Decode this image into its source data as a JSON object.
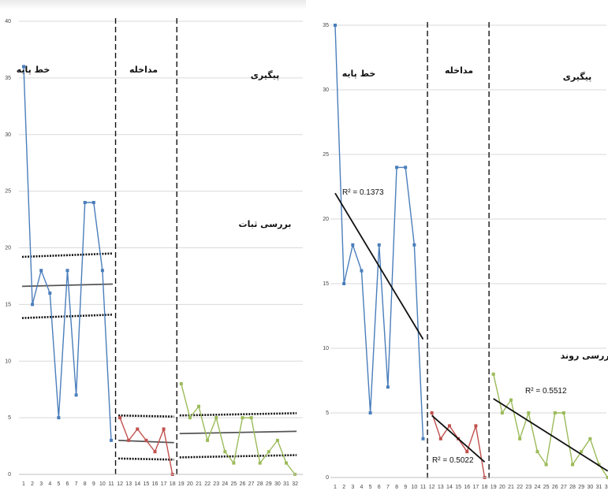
{
  "chart_data": [
    {
      "type": "line",
      "title": "",
      "xlabel": "",
      "ylabel": "",
      "x": [
        1,
        2,
        3,
        4,
        5,
        6,
        7,
        8,
        9,
        10,
        11,
        12,
        13,
        14,
        15,
        16,
        17,
        18,
        19,
        20,
        21,
        22,
        23,
        24,
        25,
        26,
        27,
        28,
        29,
        30,
        31,
        32
      ],
      "ylim": [
        0,
        40
      ],
      "yticks": [
        0,
        5,
        10,
        15,
        20,
        25,
        30,
        35,
        40
      ],
      "grid": "horizontal",
      "series": [
        {
          "segment": "baseline",
          "x": [
            1,
            2,
            3,
            4,
            5,
            6,
            7,
            8,
            9,
            10,
            11
          ],
          "values": [
            36,
            15,
            18,
            16,
            5,
            18,
            7,
            24,
            24,
            18,
            3
          ],
          "color": "#4a7ebb"
        },
        {
          "segment": "intervention",
          "x": [
            12,
            13,
            14,
            15,
            16,
            17,
            18
          ],
          "values": [
            5,
            3,
            4,
            3,
            2,
            4,
            0
          ],
          "color": "#c0504d"
        },
        {
          "segment": "followup",
          "x": [
            19,
            20,
            21,
            22,
            23,
            24,
            25,
            26,
            27,
            28,
            29,
            30,
            31,
            32
          ],
          "values": [
            8,
            5,
            6,
            3,
            5,
            2,
            1,
            5,
            5,
            1,
            2,
            3,
            1,
            0
          ],
          "color": "#9bbb59"
        }
      ],
      "stability_bands": [
        {
          "x": [
            1,
            11
          ],
          "mean": [
            16.6,
            16.8
          ],
          "upper": [
            19.2,
            19.5
          ],
          "lower": [
            13.8,
            14.1
          ]
        },
        {
          "x": [
            12,
            18
          ],
          "mean": [
            3.0,
            2.8
          ],
          "upper": [
            5.2,
            5.1
          ],
          "lower": [
            1.4,
            1.3
          ]
        },
        {
          "x": [
            19,
            32
          ],
          "mean": [
            3.6,
            3.8
          ],
          "upper": [
            5.2,
            5.4
          ],
          "lower": [
            1.5,
            1.7
          ]
        }
      ],
      "phase_boundaries": [
        11.5,
        18.5
      ],
      "phase_labels": {
        "baseline": "خط پایه",
        "intervention": "مداخله",
        "followup": "پیگیری"
      },
      "annotation": "بررسی ثبات"
    },
    {
      "type": "line",
      "title": "",
      "xlabel": "",
      "ylabel": "",
      "x": [
        1,
        2,
        3,
        4,
        5,
        6,
        7,
        8,
        9,
        10,
        11,
        12,
        13,
        14,
        15,
        16,
        17,
        18,
        19,
        20,
        21,
        22,
        23,
        24,
        25,
        26,
        27,
        28,
        29,
        30,
        31,
        32
      ],
      "ylim": [
        0,
        35
      ],
      "yticks": [
        0,
        5,
        10,
        15,
        20,
        25,
        30,
        35
      ],
      "grid": "horizontal",
      "series": [
        {
          "segment": "baseline",
          "x": [
            1,
            2,
            3,
            4,
            5,
            6,
            7,
            8,
            9,
            10,
            11
          ],
          "values": [
            36,
            15,
            18,
            16,
            5,
            18,
            7,
            24,
            24,
            18,
            3
          ],
          "color": "#4a7ebb"
        },
        {
          "segment": "intervention",
          "x": [
            12,
            13,
            14,
            15,
            16,
            17,
            18
          ],
          "values": [
            5,
            3,
            4,
            3,
            2,
            4,
            0
          ],
          "color": "#c0504d"
        },
        {
          "segment": "followup",
          "x": [
            19,
            20,
            21,
            22,
            23,
            24,
            25,
            26,
            27,
            28,
            29,
            30,
            31,
            32
          ],
          "values": [
            8,
            5,
            6,
            3,
            5,
            2,
            1,
            5,
            5,
            1,
            2,
            3,
            1,
            0
          ],
          "color": "#9bbb59"
        }
      ],
      "trendlines": [
        {
          "x": [
            1,
            11
          ],
          "y": [
            22.0,
            10.7
          ],
          "r2_label": "R² = 0.1373"
        },
        {
          "x": [
            12,
            18
          ],
          "y": [
            4.8,
            1.2
          ],
          "r2_label": "R² = 0.5022"
        },
        {
          "x": [
            19,
            32
          ],
          "y": [
            6.1,
            0.5
          ],
          "r2_label": "R² = 0.5512"
        }
      ],
      "phase_boundaries": [
        11.5,
        18.5
      ],
      "phase_labels": {
        "baseline": "خط پایه",
        "intervention": "مداخله",
        "followup": "پیگیری"
      },
      "annotation": "بررسی روند"
    }
  ]
}
